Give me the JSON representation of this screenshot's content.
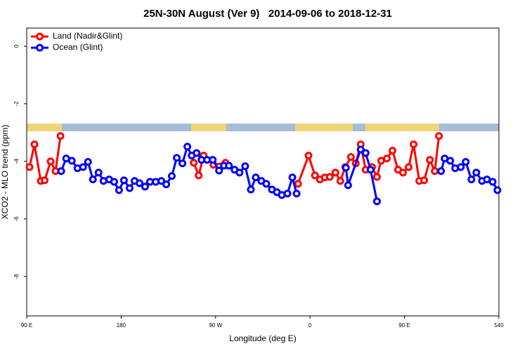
{
  "chart_data": {
    "type": "line",
    "title": "25N-30N August (Ver 9)   2014-09-06 to 2018-12-31",
    "x_label": "Longitude (deg E)",
    "y_label": "XCO2 - MLO trend (ppm)",
    "xlim": [
      90,
      540
    ],
    "ylim": [
      -9.37,
      0.63
    ],
    "xticks": [
      {
        "value": 90,
        "label": "90 E"
      },
      180,
      {
        "value": 270,
        "label": "90 W"
      },
      {
        "value": 360,
        "label": "0"
      },
      {
        "value": 450,
        "label": "90 E"
      },
      540
    ],
    "yticks": [
      0,
      -2,
      -4,
      -6,
      -8
    ],
    "legend": "top-left",
    "series": [
      {
        "name": "Land (Nadir&Glint)",
        "color": "#ff0000",
        "x": [
          92.7,
          97.4,
          103.4,
          107.1,
          112.8,
          117.5,
          122.2,
          null,
          249.2,
          253.9,
          258.6,
          268.0,
          279.4,
          null,
          348.6,
          358.6,
          364.7,
          369.4,
          374.1,
          378.8,
          384.2,
          388.9,
          393.6,
          399.0,
          403.6,
          408.3,
          413.0,
          419.1,
          423.8,
          427.8,
          433.2,
          438.6,
          443.9,
          448.6,
          454.0,
          458.7,
          464.1,
          468.8,
          474.2,
          478.9,
          482.9
        ],
        "values": [
          -4.2,
          -3.41,
          -4.68,
          -4.66,
          -4.0,
          -4.34,
          -3.12,
          null,
          -4.05,
          -4.49,
          -3.8,
          -4.12,
          -4.05,
          null,
          -4.78,
          -3.8,
          -4.49,
          -4.63,
          -4.56,
          -4.54,
          -4.39,
          -4.68,
          -4.2,
          -3.85,
          -4.07,
          -3.41,
          -4.29,
          -4.2,
          -4.54,
          -3.98,
          -3.9,
          -3.63,
          -4.29,
          -4.39,
          -4.2,
          -3.41,
          -4.68,
          -4.66,
          -3.95,
          -4.34,
          -3.12
        ]
      },
      {
        "name": "Ocean (Glint)",
        "color": "#0000ff",
        "x": [
          122.9,
          127.6,
          133.0,
          138.4,
          143.7,
          148.4,
          153.1,
          158.5,
          163.2,
          168.6,
          173.3,
          178.0,
          182.7,
          188.1,
          192.8,
          197.5,
          202.8,
          207.5,
          212.9,
          218.3,
          223.0,
          228.3,
          233.0,
          238.4,
          243.1,
          247.2,
          251.9,
          256.6,
          261.9,
          267.3,
          273.3,
          278.0,
          282.7,
          288.1,
          292.8,
          298.2,
          303.6,
          308.3,
          313.6,
          318.3,
          323.7,
          328.4,
          333.1,
          338.5,
          343.2,
          347.2,
          null,
          394.2,
          396.3,
          408.3,
          413.0,
          417.7,
          423.8,
          null,
          484.9,
          488.3,
          493.6,
          498.3,
          503.7,
          508.4,
          513.8,
          518.5,
          523.9,
          528.6,
          534.0,
          538.6
        ],
        "values": [
          -4.34,
          -3.9,
          -3.98,
          -4.24,
          -4.2,
          -4.02,
          -4.63,
          -4.39,
          -4.68,
          -4.63,
          -4.71,
          -5.0,
          -4.66,
          -4.93,
          -4.68,
          -4.76,
          -4.88,
          -4.71,
          -4.71,
          -4.68,
          -4.8,
          -4.51,
          -3.88,
          -4.07,
          -3.49,
          -3.8,
          -3.71,
          -3.95,
          -3.95,
          -3.95,
          -4.32,
          -4.15,
          -4.15,
          -4.29,
          -4.39,
          -4.17,
          -4.98,
          -4.56,
          -4.68,
          -4.78,
          -4.98,
          -5.07,
          -5.17,
          -5.12,
          -4.56,
          -5.12,
          null,
          -4.22,
          -4.83,
          -3.59,
          -3.71,
          -4.29,
          -5.39,
          null,
          -4.34,
          -3.9,
          -3.98,
          -4.24,
          -4.2,
          -4.02,
          -4.63,
          -4.39,
          -4.68,
          -4.63,
          -4.71,
          -5.0
        ]
      }
    ]
  }
}
